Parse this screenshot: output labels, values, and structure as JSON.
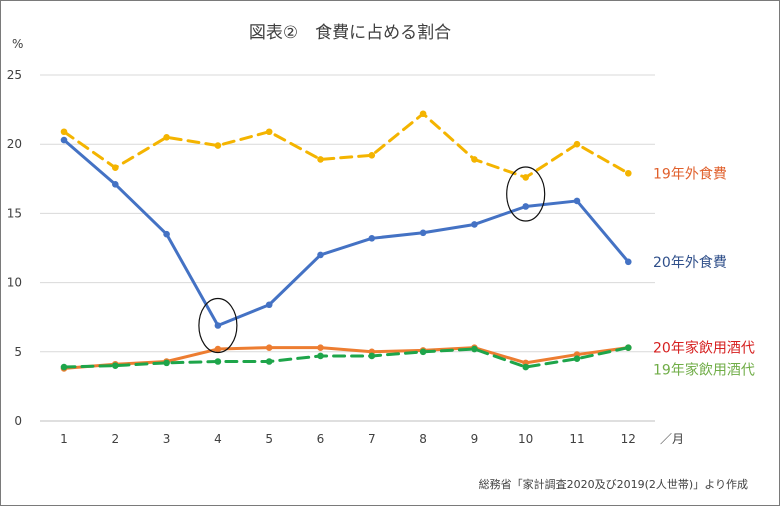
{
  "chart_data": {
    "type": "line",
    "title": "図表②　食費に占める割合",
    "ylabel": "%",
    "xlabel": "／月",
    "source": "総務省「家計調査2020及び2019(2人世帯)」より作成",
    "categories": [
      "1",
      "2",
      "3",
      "4",
      "5",
      "6",
      "7",
      "8",
      "9",
      "10",
      "11",
      "12"
    ],
    "ylim": [
      0,
      25
    ],
    "yticks": [
      "0",
      "5",
      "10",
      "15",
      "20",
      "25"
    ],
    "grid": "horizontal",
    "legend": "right-end labels",
    "series": [
      {
        "name": "19年外食費",
        "color": "#f4b400",
        "label_color": "#e0602c",
        "style": "dashed",
        "values": [
          20.9,
          18.3,
          20.5,
          19.9,
          20.9,
          18.9,
          19.2,
          22.2,
          18.9,
          17.6,
          20.0,
          17.9
        ]
      },
      {
        "name": "20年外食費",
        "color": "#4472c4",
        "label_color": "#2f4f8a",
        "style": "solid",
        "values": [
          20.3,
          17.1,
          13.5,
          6.9,
          8.4,
          12.0,
          13.2,
          13.6,
          14.2,
          15.5,
          15.9,
          11.5
        ]
      },
      {
        "name": "20年家飲用酒代",
        "color": "#ed7d31",
        "label_color": "#d62020",
        "style": "solid",
        "values": [
          3.8,
          4.1,
          4.3,
          5.2,
          5.3,
          5.3,
          5.0,
          5.1,
          5.3,
          4.2,
          4.8,
          5.3
        ]
      },
      {
        "name": "19年家飲用酒代",
        "color": "#1ea54a",
        "label_color": "#70ad47",
        "style": "dashed",
        "values": [
          3.9,
          4.0,
          4.2,
          4.3,
          4.3,
          4.7,
          4.7,
          5.0,
          5.2,
          3.9,
          4.5,
          5.3
        ]
      }
    ],
    "annotations": [
      {
        "type": "ellipse",
        "category": "4",
        "around": 6.9
      },
      {
        "type": "ellipse",
        "category": "10",
        "around": 16.4
      }
    ]
  }
}
